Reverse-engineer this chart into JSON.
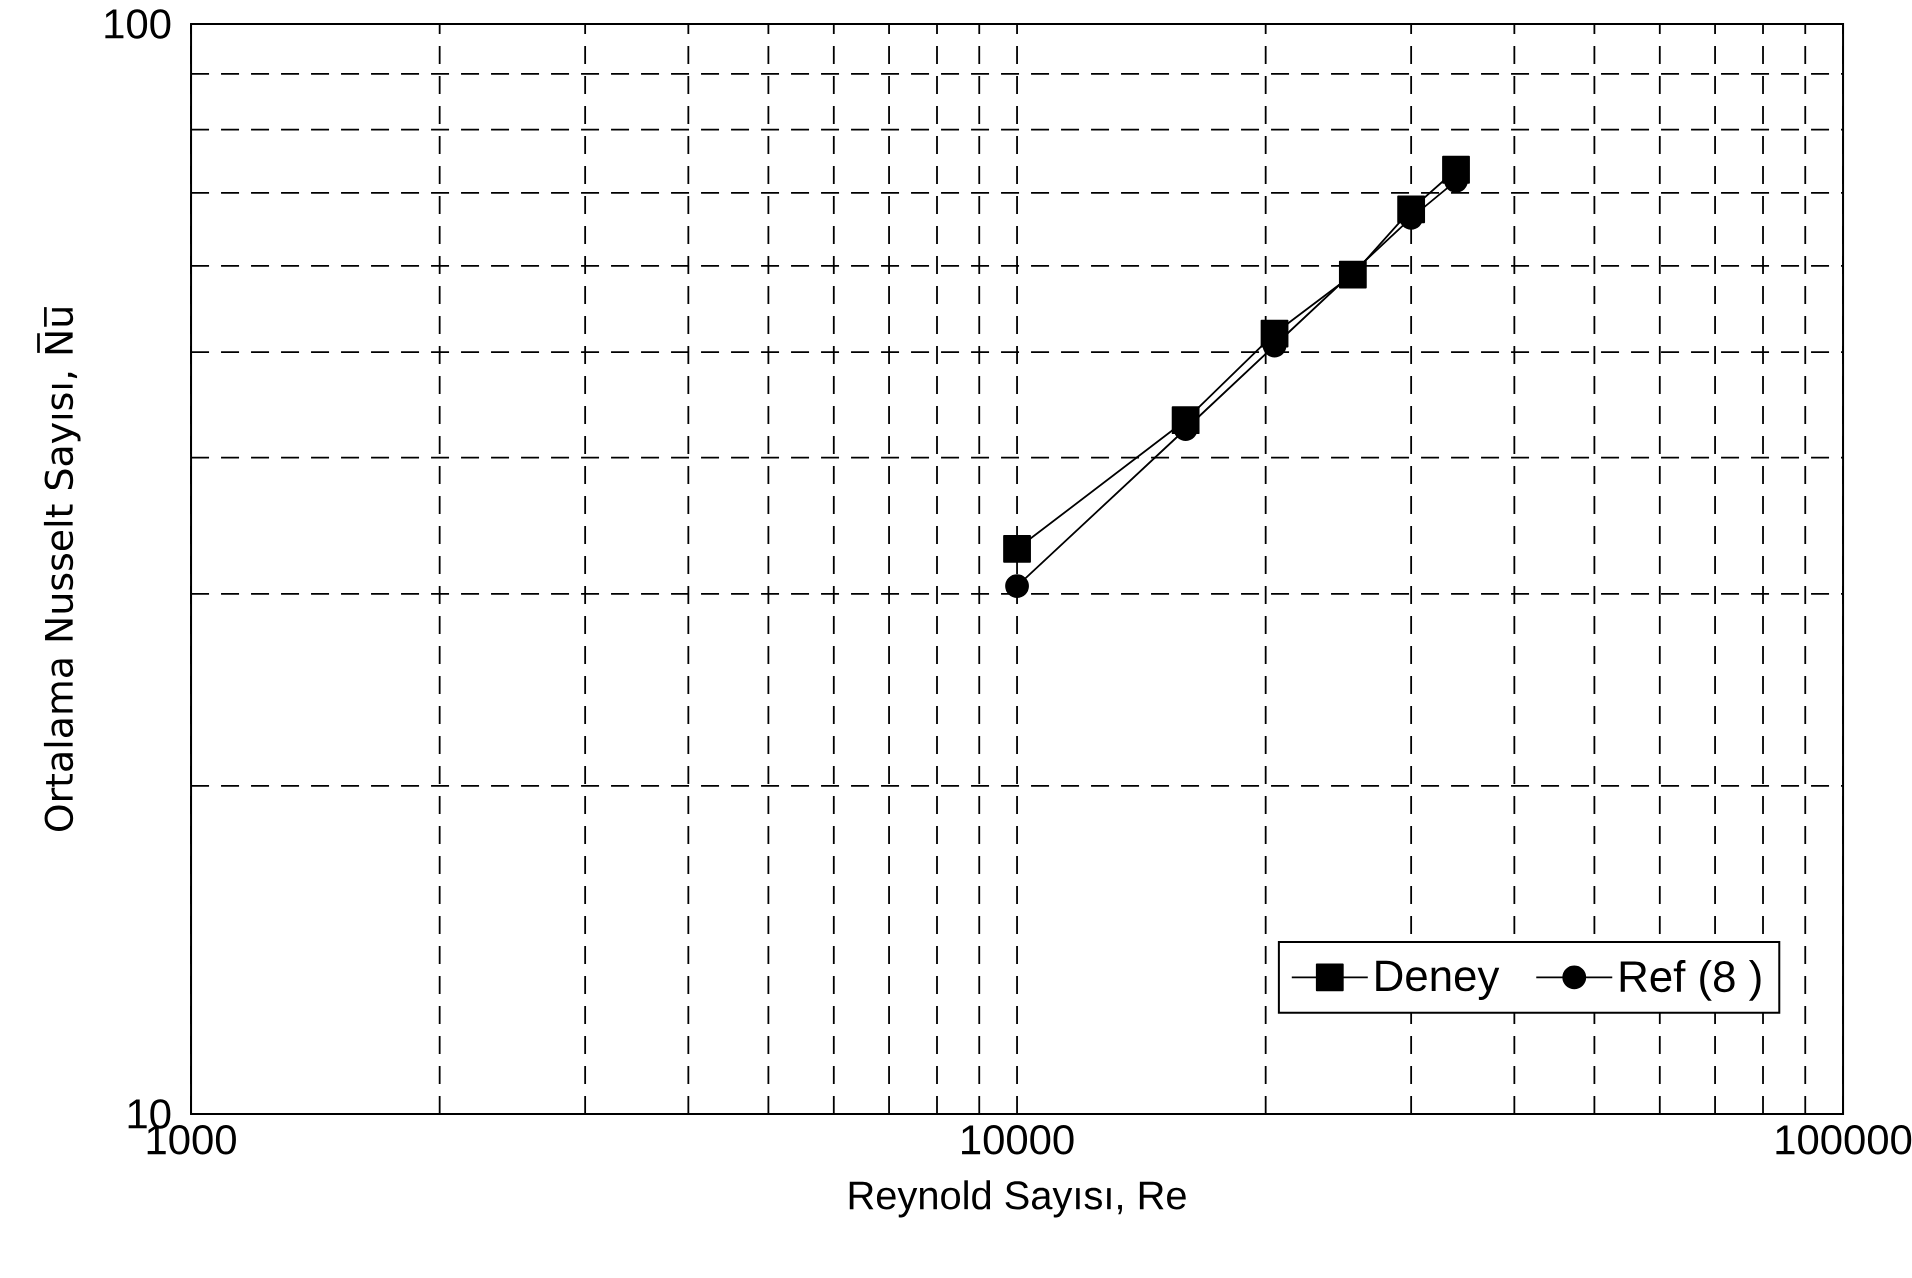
{
  "chart_data": {
    "type": "line",
    "xlabel": "Reynold Sayısı, Re",
    "ylabel": "Ortalama Nusselt Sayısı, N̅u̅",
    "series": [
      {
        "name": "Deney",
        "color": "#000000",
        "marker": "square",
        "x": [
          10000,
          16000,
          20500,
          25500,
          30000,
          34000
        ],
        "values": [
          33.0,
          43.3,
          52.0,
          58.9,
          67.6,
          73.5
        ]
      },
      {
        "name": "Ref (8 )",
        "color": "#000000",
        "marker": "circle",
        "x": [
          10000,
          16000,
          20500,
          30000,
          34000
        ],
        "values": [
          30.5,
          42.5,
          50.7,
          66.4,
          71.8
        ]
      }
    ],
    "xlim": [
      1000,
      100000
    ],
    "ylim": [
      10,
      100
    ],
    "xticks": [
      1000,
      10000,
      100000
    ],
    "yticks": [
      10,
      100
    ],
    "log": "xy",
    "grid": true,
    "legend": "bottom right",
    "line_style": "solid"
  }
}
